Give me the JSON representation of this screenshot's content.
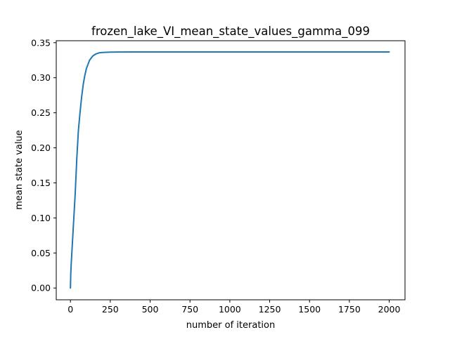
{
  "chart_data": {
    "type": "line",
    "title": "frozen_lake_VI_mean_state_values_gamma_099",
    "xlabel": "number of iteration",
    "ylabel": "mean state value",
    "xlim": [
      -89,
      2099
    ],
    "ylim": [
      -0.0168,
      0.3528
    ],
    "xticks": [
      0,
      250,
      500,
      750,
      1000,
      1250,
      1500,
      1750,
      2000
    ],
    "xtick_labels": [
      "0",
      "250",
      "500",
      "750",
      "1000",
      "1250",
      "1500",
      "1750",
      "2000"
    ],
    "yticks": [
      0.0,
      0.05,
      0.1,
      0.15,
      0.2,
      0.25,
      0.3,
      0.35
    ],
    "ytick_labels": [
      "0.00",
      "0.05",
      "0.10",
      "0.15",
      "0.20",
      "0.25",
      "0.30",
      "0.35"
    ],
    "grid": false,
    "color": "#1f77b4",
    "series": [
      {
        "x": [
          0,
          2,
          5,
          10,
          15,
          20,
          30,
          40,
          50,
          60,
          70,
          80,
          90,
          100,
          120,
          140,
          160,
          180,
          200,
          250,
          300,
          400,
          500,
          750,
          1000,
          1250,
          1500,
          1750,
          2000
        ],
        "y": [
          0.0,
          0.02,
          0.035,
          0.055,
          0.075,
          0.095,
          0.135,
          0.185,
          0.225,
          0.25,
          0.272,
          0.29,
          0.303,
          0.313,
          0.325,
          0.331,
          0.334,
          0.3355,
          0.336,
          0.3365,
          0.3367,
          0.3368,
          0.3368,
          0.3368,
          0.3368,
          0.3368,
          0.3368,
          0.3368,
          0.3368
        ]
      }
    ]
  }
}
